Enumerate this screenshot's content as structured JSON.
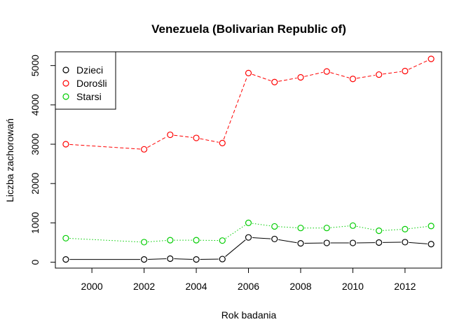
{
  "chart_data": {
    "type": "line",
    "title": "Venezuela (Bolivarian Republic of)",
    "xlabel": "Rok badania",
    "ylabel": "Liczba zachorowań",
    "xlim": [
      1998.6,
      2013.4
    ],
    "ylim": [
      -150,
      5350
    ],
    "x_ticks": [
      2000,
      2002,
      2004,
      2006,
      2008,
      2010,
      2012
    ],
    "y_ticks": [
      0,
      1000,
      2000,
      3000,
      4000,
      5000
    ],
    "x": [
      1999,
      2002,
      2003,
      2004,
      2005,
      2006,
      2007,
      2008,
      2009,
      2010,
      2011,
      2012,
      2013
    ],
    "grid": false,
    "legend_position": "top-left",
    "series": [
      {
        "name": "Dzieci",
        "color": "#000000",
        "line_style": "solid",
        "values": [
          70,
          70,
          90,
          70,
          80,
          630,
          590,
          480,
          490,
          490,
          500,
          510,
          460
        ]
      },
      {
        "name": "Dorośli",
        "color": "#ff0000",
        "line_style": "dashed",
        "values": [
          3000,
          2870,
          3240,
          3160,
          3030,
          4810,
          4580,
          4700,
          4850,
          4660,
          4770,
          4860,
          5170
        ]
      },
      {
        "name": "Starsi",
        "color": "#00cd00",
        "line_style": "dotted",
        "values": [
          610,
          510,
          560,
          560,
          550,
          1000,
          910,
          870,
          870,
          930,
          800,
          840,
          920
        ]
      }
    ]
  }
}
